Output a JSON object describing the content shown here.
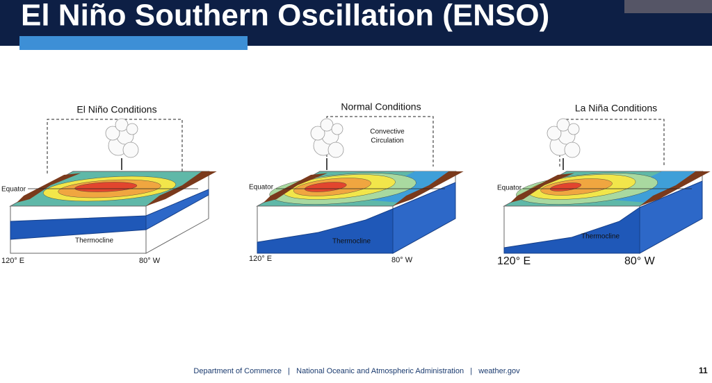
{
  "header": {
    "title": "El Niño Southern Oscillation (ENSO)"
  },
  "panels": [
    {
      "title": "El Niño Conditions",
      "equator_label": "Equator",
      "thermocline_label": "Thermocline",
      "west_label": "120° E",
      "east_label": "80° W"
    },
    {
      "title": "Normal Conditions",
      "circulation_label": [
        "Convective",
        "Circulation"
      ],
      "equator_label": "Equator",
      "thermocline_label": "Thermocline",
      "west_label": "120° E",
      "east_label": "80° W"
    },
    {
      "title": "La Niña Conditions",
      "equator_label": "Equator",
      "thermocline_label": "Thermocline",
      "west_label": "120° E",
      "east_label": "80° W"
    }
  ],
  "footer": {
    "text": "Department of Commerce   |   National Oceanic and Atmospheric Administration   |   weather.gov",
    "page_number": "11"
  }
}
